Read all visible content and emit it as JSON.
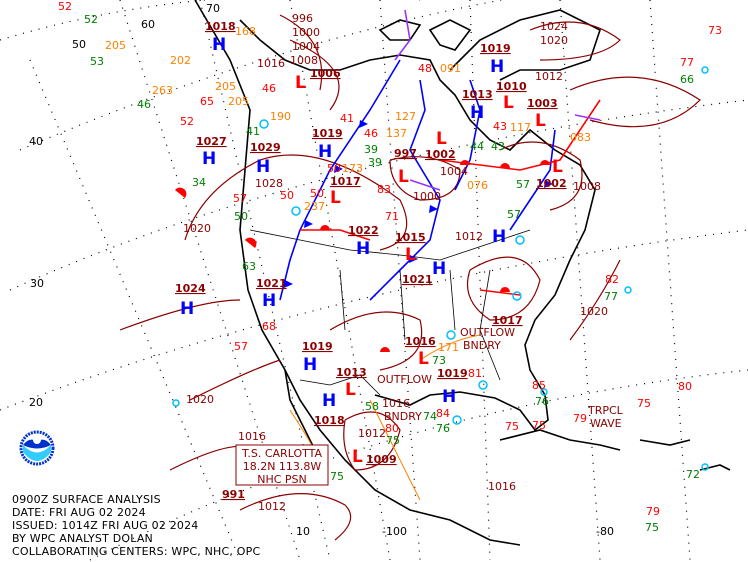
{
  "title_block": {
    "line1": "0900Z SURFACE ANALYSIS",
    "line2": "DATE: FRI AUG 02 2024",
    "line3": "ISSUED: 1014Z FRI AUG 02 2024",
    "line4": "BY WPC ANALYST DOLAN",
    "line5": "COLLABORATING CENTERS: WPC, NHC, OPC"
  },
  "colors": {
    "high": "#0000ff",
    "low": "#ff0000",
    "isobar": "#8b0000",
    "cold_front": "#0000ff",
    "warm_front": "#ff0000",
    "occluded_front": "#9933ff",
    "temperature": "#ff0000",
    "dewpoint": "#008000",
    "pressure_tendency": "#ff8000",
    "station": "#00bfff",
    "coastline": "#000000"
  },
  "logo": {
    "icon": "noaa-logo-icon"
  },
  "grid_labels": {
    "lat70": "70",
    "lat60": "60",
    "lat50": "50",
    "lat40": "40",
    "lat30": "30",
    "lat20": "20",
    "lat10": "10",
    "lon100": "-100",
    "lon80": "-80"
  },
  "highs": [
    {
      "symbol": "H",
      "pressure": "1027"
    },
    {
      "symbol": "H",
      "pressure": "1024"
    },
    {
      "symbol": "H",
      "pressure": "1029"
    },
    {
      "symbol": "H",
      "pressure": "1019"
    },
    {
      "symbol": "H",
      "pressure": "1013"
    },
    {
      "symbol": "H",
      "pressure": "1019"
    },
    {
      "symbol": "H",
      "pressure": "1018"
    },
    {
      "symbol": "H",
      "pressure": "1022"
    },
    {
      "symbol": "H",
      "pressure": "1019"
    },
    {
      "symbol": "H",
      "pressure": "1021"
    },
    {
      "symbol": "H",
      "pressure": "1019"
    },
    {
      "symbol": "H",
      "pressure": "1018"
    },
    {
      "symbol": "H",
      "pressure": "1017"
    },
    {
      "symbol": "H",
      "pressure": "1021"
    }
  ],
  "lows": [
    {
      "symbol": "L",
      "pressure": "1009"
    },
    {
      "symbol": "L",
      "pressure": "997"
    },
    {
      "symbol": "L",
      "pressure": "1002"
    },
    {
      "symbol": "L",
      "pressure": "1003"
    },
    {
      "symbol": "L",
      "pressure": "1010"
    },
    {
      "symbol": "L",
      "pressure": "1002"
    },
    {
      "symbol": "L",
      "pressure": "1006"
    },
    {
      "symbol": "L",
      "pressure": "1017"
    },
    {
      "symbol": "L",
      "pressure": "1016"
    },
    {
      "symbol": "L",
      "pressure": "1013"
    },
    {
      "symbol": "L",
      "pressure": "1015"
    }
  ],
  "isobar_labels": [
    "996",
    "1000",
    "1004",
    "1008",
    "1024",
    "1020",
    "1012",
    "1016",
    "1020",
    "1028",
    "1012",
    "1016",
    "1012",
    "1008",
    "1020",
    "1016",
    "1020",
    "1012",
    "1016",
    "1004",
    "1000"
  ],
  "annotations": {
    "storm_name": "T.S. CARLOTTA",
    "storm_position": "18.2N 113.8W",
    "storm_source": "NHC PSN",
    "storm_pressure": "991",
    "outflow1": "OUTFLOW",
    "outflow1b": "BNDRY",
    "outflow2": "OUTFLOW",
    "outflow2b": "BNDRY",
    "wave1": "TRPCL",
    "wave1b": "WAVE"
  },
  "stations": {
    "temps": [
      "52",
      "46",
      "50",
      "41",
      "46",
      "48",
      "50",
      "83",
      "81",
      "84",
      "85",
      "75",
      "79",
      "80",
      "73",
      "77",
      "82",
      "75",
      "79",
      "65",
      "57",
      "68",
      "80",
      "57",
      "50",
      "71",
      "43",
      "52",
      "75"
    ],
    "dewpoints": [
      "52",
      "53",
      "46",
      "39",
      "41",
      "43",
      "57",
      "57",
      "73",
      "74",
      "76",
      "76",
      "58",
      "75",
      "75",
      "77",
      "66",
      "72",
      "75",
      "34",
      "39",
      "44",
      "50",
      "63"
    ],
    "tendencies": [
      "205",
      "263",
      "202",
      "190",
      "173",
      "076",
      "117",
      "091",
      "083",
      "137",
      "168",
      "205",
      "127",
      "171",
      "205",
      "237"
    ]
  }
}
